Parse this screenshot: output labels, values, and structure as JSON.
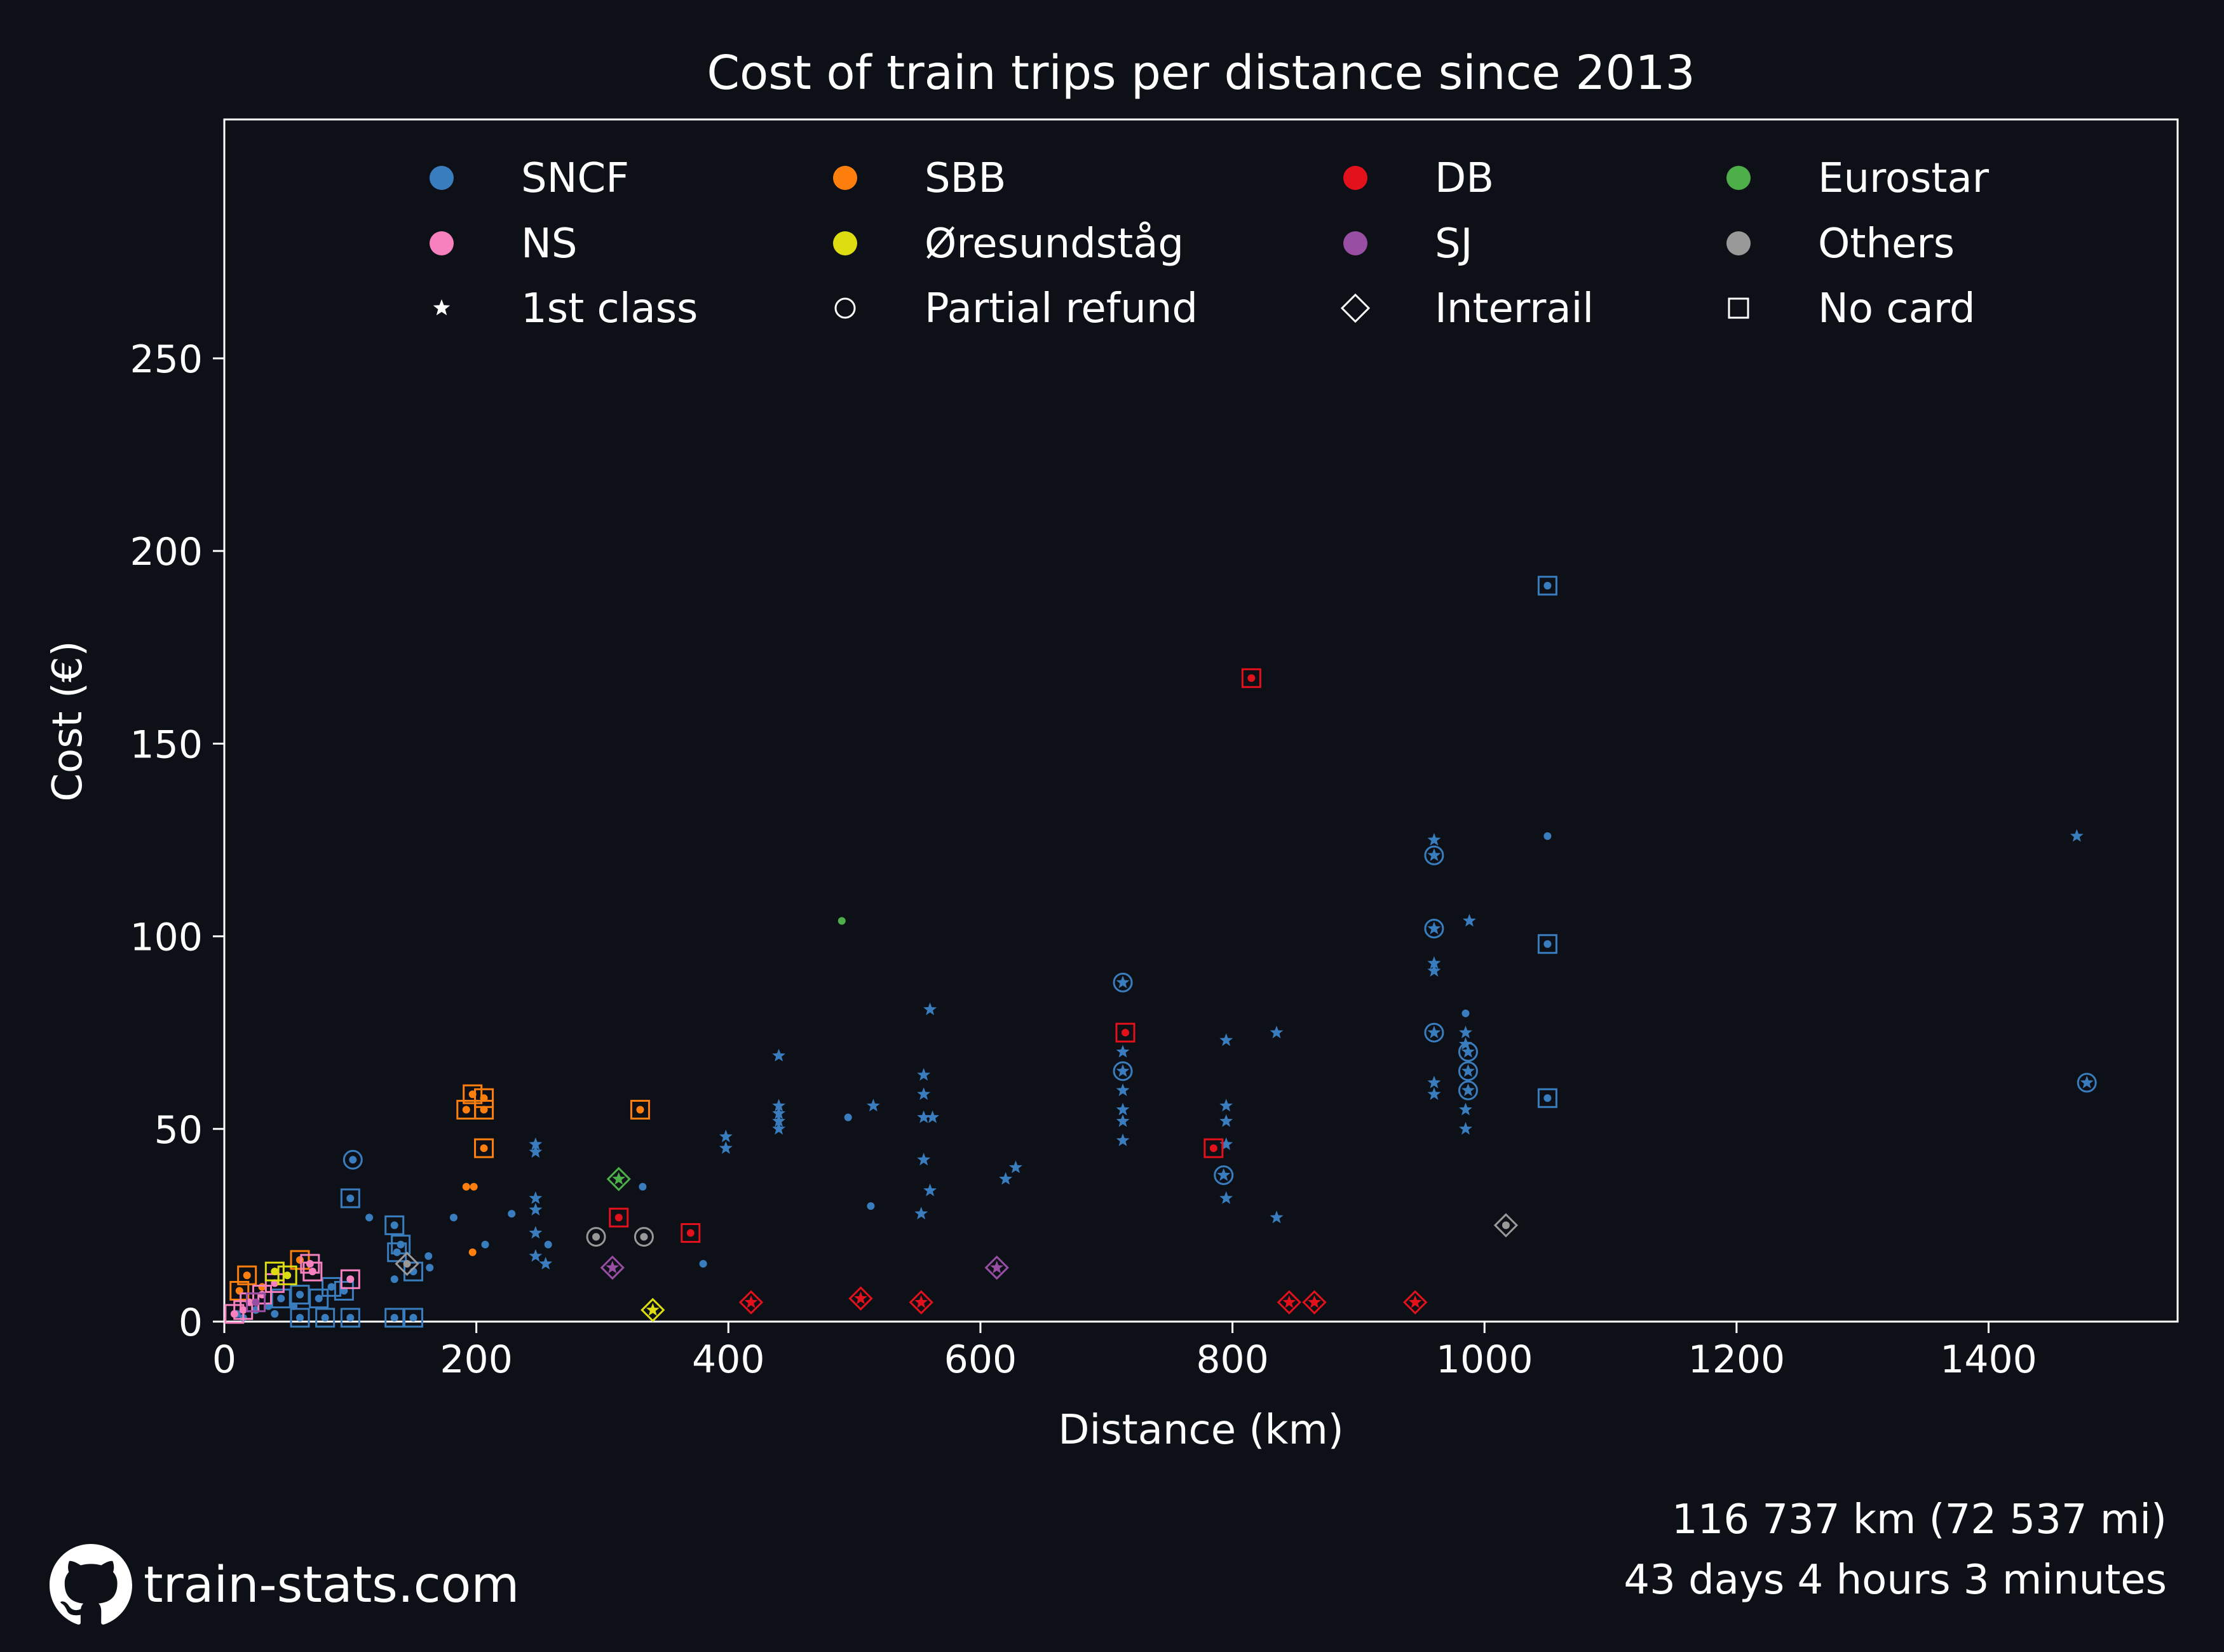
{
  "chart_data": {
    "type": "scatter",
    "title": "Cost of train trips per distance since 2013",
    "xlabel": "Distance (km)",
    "ylabel": "Cost (€)",
    "xlim": [
      0,
      1550
    ],
    "ylim": [
      0,
      312
    ],
    "xticks": [
      0,
      200,
      400,
      600,
      800,
      1000,
      1200,
      1400
    ],
    "yticks": [
      0,
      50,
      100,
      150,
      200,
      250
    ],
    "legend": {
      "placement": "top",
      "items": [
        {
          "label": "SNCF",
          "kind": "color",
          "color": "#3a7dbf"
        },
        {
          "label": "SBB",
          "kind": "color",
          "color": "#ff7f0e"
        },
        {
          "label": "DB",
          "kind": "color",
          "color": "#e3111b"
        },
        {
          "label": "Eurostar",
          "kind": "color",
          "color": "#4daf4a"
        },
        {
          "label": "NS",
          "kind": "color",
          "color": "#f781bf"
        },
        {
          "label": "Øresundståg",
          "kind": "color",
          "color": "#dddd11"
        },
        {
          "label": "SJ",
          "kind": "color",
          "color": "#984ea3"
        },
        {
          "label": "Others",
          "kind": "color",
          "color": "#999999"
        },
        {
          "label": "1st class",
          "kind": "marker",
          "marker": "star"
        },
        {
          "label": "Partial refund",
          "kind": "marker",
          "marker": "circle"
        },
        {
          "label": "Interrail",
          "kind": "marker",
          "marker": "diamond"
        },
        {
          "label": "No card",
          "kind": "marker",
          "marker": "square"
        }
      ]
    },
    "colors": {
      "SNCF": "#3a7dbf",
      "SBB": "#ff7f0e",
      "DB": "#e3111b",
      "Eurostar": "#4daf4a",
      "NS": "#f781bf",
      "Øresundståg": "#dddd11",
      "SJ": "#984ea3",
      "Others": "#999999"
    },
    "series": [
      {
        "name": "SNCF",
        "points": [
          {
            "x": 1050,
            "y": 191,
            "m": "dot",
            "box": true
          },
          {
            "x": 1050,
            "y": 126,
            "m": "dot"
          },
          {
            "x": 1470,
            "y": 126,
            "m": "star"
          },
          {
            "x": 1478,
            "y": 62,
            "m": "star",
            "ring": true
          },
          {
            "x": 1050,
            "y": 98,
            "m": "dot",
            "box": true
          },
          {
            "x": 1050,
            "y": 58,
            "m": "dot",
            "box": true
          },
          {
            "x": 960,
            "y": 125,
            "m": "star"
          },
          {
            "x": 960,
            "y": 121,
            "m": "star",
            "ring": true
          },
          {
            "x": 960,
            "y": 102,
            "m": "star",
            "ring": true
          },
          {
            "x": 960,
            "y": 93,
            "m": "star"
          },
          {
            "x": 960,
            "y": 91,
            "m": "star"
          },
          {
            "x": 960,
            "y": 75,
            "m": "star",
            "ring": true
          },
          {
            "x": 960,
            "y": 62,
            "m": "star"
          },
          {
            "x": 960,
            "y": 59,
            "m": "star"
          },
          {
            "x": 988,
            "y": 104,
            "m": "star"
          },
          {
            "x": 985,
            "y": 80,
            "m": "dot"
          },
          {
            "x": 985,
            "y": 75,
            "m": "star"
          },
          {
            "x": 985,
            "y": 72,
            "m": "star"
          },
          {
            "x": 987,
            "y": 70,
            "m": "star",
            "ring": true
          },
          {
            "x": 987,
            "y": 65,
            "m": "star",
            "ring": true
          },
          {
            "x": 987,
            "y": 60,
            "m": "star",
            "ring": true
          },
          {
            "x": 985,
            "y": 55,
            "m": "star"
          },
          {
            "x": 985,
            "y": 50,
            "m": "star"
          },
          {
            "x": 713,
            "y": 88,
            "m": "star",
            "ring": true
          },
          {
            "x": 713,
            "y": 70,
            "m": "star"
          },
          {
            "x": 713,
            "y": 65,
            "m": "star",
            "ring": true
          },
          {
            "x": 713,
            "y": 60,
            "m": "star"
          },
          {
            "x": 713,
            "y": 55,
            "m": "star"
          },
          {
            "x": 713,
            "y": 52,
            "m": "star"
          },
          {
            "x": 713,
            "y": 47,
            "m": "star"
          },
          {
            "x": 795,
            "y": 73,
            "m": "star"
          },
          {
            "x": 795,
            "y": 56,
            "m": "star"
          },
          {
            "x": 795,
            "y": 52,
            "m": "star"
          },
          {
            "x": 795,
            "y": 46,
            "m": "star"
          },
          {
            "x": 793,
            "y": 38,
            "m": "star",
            "ring": true
          },
          {
            "x": 795,
            "y": 32,
            "m": "star"
          },
          {
            "x": 835,
            "y": 75,
            "m": "star"
          },
          {
            "x": 835,
            "y": 27,
            "m": "star"
          },
          {
            "x": 560,
            "y": 81,
            "m": "star"
          },
          {
            "x": 555,
            "y": 64,
            "m": "star"
          },
          {
            "x": 555,
            "y": 59,
            "m": "star"
          },
          {
            "x": 555,
            "y": 53,
            "m": "star"
          },
          {
            "x": 562,
            "y": 53,
            "m": "star"
          },
          {
            "x": 555,
            "y": 42,
            "m": "star"
          },
          {
            "x": 560,
            "y": 34,
            "m": "star"
          },
          {
            "x": 553,
            "y": 28,
            "m": "star"
          },
          {
            "x": 628,
            "y": 40,
            "m": "star"
          },
          {
            "x": 620,
            "y": 37,
            "m": "star"
          },
          {
            "x": 440,
            "y": 69,
            "m": "star"
          },
          {
            "x": 440,
            "y": 56,
            "m": "star"
          },
          {
            "x": 440,
            "y": 54,
            "m": "star"
          },
          {
            "x": 440,
            "y": 52,
            "m": "star"
          },
          {
            "x": 440,
            "y": 50,
            "m": "star"
          },
          {
            "x": 515,
            "y": 56,
            "m": "star"
          },
          {
            "x": 495,
            "y": 53,
            "m": "dot"
          },
          {
            "x": 513,
            "y": 30,
            "m": "dot"
          },
          {
            "x": 398,
            "y": 48,
            "m": "star"
          },
          {
            "x": 398,
            "y": 45,
            "m": "star"
          },
          {
            "x": 380,
            "y": 15,
            "m": "dot"
          },
          {
            "x": 247,
            "y": 46,
            "m": "star"
          },
          {
            "x": 247,
            "y": 44,
            "m": "star"
          },
          {
            "x": 247,
            "y": 32,
            "m": "star"
          },
          {
            "x": 247,
            "y": 29,
            "m": "star"
          },
          {
            "x": 247,
            "y": 23,
            "m": "star"
          },
          {
            "x": 247,
            "y": 17,
            "m": "star"
          },
          {
            "x": 255,
            "y": 15,
            "m": "star"
          },
          {
            "x": 257,
            "y": 20,
            "m": "dot"
          },
          {
            "x": 228,
            "y": 28,
            "m": "dot"
          },
          {
            "x": 207,
            "y": 20,
            "m": "dot"
          },
          {
            "x": 182,
            "y": 27,
            "m": "dot"
          },
          {
            "x": 332,
            "y": 35,
            "m": "dot"
          },
          {
            "x": 102,
            "y": 42,
            "m": "dot",
            "ring": true
          },
          {
            "x": 100,
            "y": 32,
            "m": "dot",
            "box": true
          },
          {
            "x": 115,
            "y": 27,
            "m": "dot"
          },
          {
            "x": 135,
            "y": 25,
            "m": "dot",
            "box": true
          },
          {
            "x": 140,
            "y": 20,
            "m": "dot",
            "box": true
          },
          {
            "x": 137,
            "y": 18,
            "m": "dot",
            "box": true
          },
          {
            "x": 150,
            "y": 13,
            "m": "dot",
            "box": true
          },
          {
            "x": 162,
            "y": 17,
            "m": "dot"
          },
          {
            "x": 163,
            "y": 14,
            "m": "dot"
          },
          {
            "x": 135,
            "y": 11,
            "m": "dot"
          },
          {
            "x": 95,
            "y": 8,
            "m": "dot",
            "box": true
          },
          {
            "x": 85,
            "y": 9,
            "m": "dot",
            "box": true
          },
          {
            "x": 75,
            "y": 6,
            "m": "dot",
            "box": true
          },
          {
            "x": 60,
            "y": 7,
            "m": "dot",
            "box": true
          },
          {
            "x": 45,
            "y": 6,
            "m": "dot",
            "box": true
          },
          {
            "x": 35,
            "y": 4,
            "m": "dot"
          },
          {
            "x": 25,
            "y": 3,
            "m": "dot"
          },
          {
            "x": 55,
            "y": 4,
            "m": "dot"
          },
          {
            "x": 40,
            "y": 2,
            "m": "dot"
          },
          {
            "x": 80,
            "y": 1,
            "m": "dot",
            "box": true
          },
          {
            "x": 100,
            "y": 1,
            "m": "dot",
            "box": true
          },
          {
            "x": 135,
            "y": 1,
            "m": "dot",
            "box": true
          },
          {
            "x": 150,
            "y": 1,
            "m": "dot",
            "box": true
          },
          {
            "x": 60,
            "y": 1,
            "m": "dot",
            "box": true
          },
          {
            "x": 15,
            "y": 1,
            "m": "dot"
          },
          {
            "x": 10,
            "y": 2,
            "m": "dot"
          }
        ]
      },
      {
        "name": "SBB",
        "points": [
          {
            "x": 197,
            "y": 59,
            "m": "dot",
            "box": true
          },
          {
            "x": 206,
            "y": 58,
            "m": "dot",
            "box": true
          },
          {
            "x": 192,
            "y": 55,
            "m": "dot",
            "box": true
          },
          {
            "x": 206,
            "y": 55,
            "m": "dot",
            "box": true
          },
          {
            "x": 330,
            "y": 55,
            "m": "dot",
            "box": true
          },
          {
            "x": 206,
            "y": 45,
            "m": "dot",
            "box": true
          },
          {
            "x": 192,
            "y": 35,
            "m": "dot"
          },
          {
            "x": 198,
            "y": 35,
            "m": "dot"
          },
          {
            "x": 197,
            "y": 18,
            "m": "dot"
          },
          {
            "x": 60,
            "y": 16,
            "m": "dot",
            "box": true
          },
          {
            "x": 18,
            "y": 12,
            "m": "dot",
            "box": true
          },
          {
            "x": 12,
            "y": 8,
            "m": "dot",
            "box": true
          },
          {
            "x": 30,
            "y": 9,
            "m": "dot"
          }
        ]
      },
      {
        "name": "DB",
        "points": [
          {
            "x": 815,
            "y": 167,
            "m": "dot",
            "box": true
          },
          {
            "x": 715,
            "y": 75,
            "m": "dot",
            "box": true
          },
          {
            "x": 785,
            "y": 45,
            "m": "dot",
            "box": true
          },
          {
            "x": 313,
            "y": 27,
            "m": "dot",
            "box": true
          },
          {
            "x": 370,
            "y": 23,
            "m": "dot",
            "box": true
          },
          {
            "x": 418,
            "y": 5,
            "m": "star",
            "diamond": true
          },
          {
            "x": 505,
            "y": 6,
            "m": "star",
            "diamond": true
          },
          {
            "x": 553,
            "y": 5,
            "m": "star",
            "diamond": true
          },
          {
            "x": 845,
            "y": 5,
            "m": "star",
            "diamond": true
          },
          {
            "x": 865,
            "y": 5,
            "m": "star",
            "diamond": true
          },
          {
            "x": 945,
            "y": 5,
            "m": "star",
            "diamond": true
          }
        ]
      },
      {
        "name": "Eurostar",
        "points": [
          {
            "x": 490,
            "y": 104,
            "m": "dot"
          },
          {
            "x": 313,
            "y": 37,
            "m": "star",
            "diamond": true
          }
        ]
      },
      {
        "name": "NS",
        "points": [
          {
            "x": 68,
            "y": 15,
            "m": "dot",
            "box": true
          },
          {
            "x": 70,
            "y": 13,
            "m": "dot",
            "box": true
          },
          {
            "x": 100,
            "y": 11,
            "m": "dot",
            "box": true
          },
          {
            "x": 40,
            "y": 10,
            "m": "dot",
            "box": true
          },
          {
            "x": 30,
            "y": 7,
            "m": "dot",
            "box": true
          },
          {
            "x": 20,
            "y": 5,
            "m": "dot",
            "box": true
          },
          {
            "x": 15,
            "y": 3,
            "m": "dot",
            "box": true
          },
          {
            "x": 8,
            "y": 2,
            "m": "dot",
            "box": true
          }
        ]
      },
      {
        "name": "Øresundståg",
        "points": [
          {
            "x": 340,
            "y": 3,
            "m": "star",
            "diamond": true
          },
          {
            "x": 40,
            "y": 13,
            "m": "dot",
            "box": true
          },
          {
            "x": 50,
            "y": 12,
            "m": "dot",
            "box": true
          }
        ]
      },
      {
        "name": "SJ",
        "points": [
          {
            "x": 308,
            "y": 14,
            "m": "star",
            "diamond": true
          },
          {
            "x": 613,
            "y": 14,
            "m": "star",
            "diamond": true
          },
          {
            "x": 25,
            "y": 5,
            "m": "dot",
            "box": true
          }
        ]
      },
      {
        "name": "Others",
        "points": [
          {
            "x": 1017,
            "y": 25,
            "m": "dot",
            "diamond": true
          },
          {
            "x": 295,
            "y": 22,
            "m": "dot",
            "ring": true
          },
          {
            "x": 333,
            "y": 22,
            "m": "dot",
            "ring": true
          },
          {
            "x": 145,
            "y": 15,
            "m": "dot",
            "diamond": true
          }
        ]
      }
    ],
    "grid": false
  },
  "footer": {
    "distance": "116 737 km (72 537 mi)",
    "duration": "43 days 4 hours 3 minutes",
    "brand": "train-stats.com"
  },
  "theme": {
    "background": "#0d1117",
    "foreground": "#ffffff"
  }
}
